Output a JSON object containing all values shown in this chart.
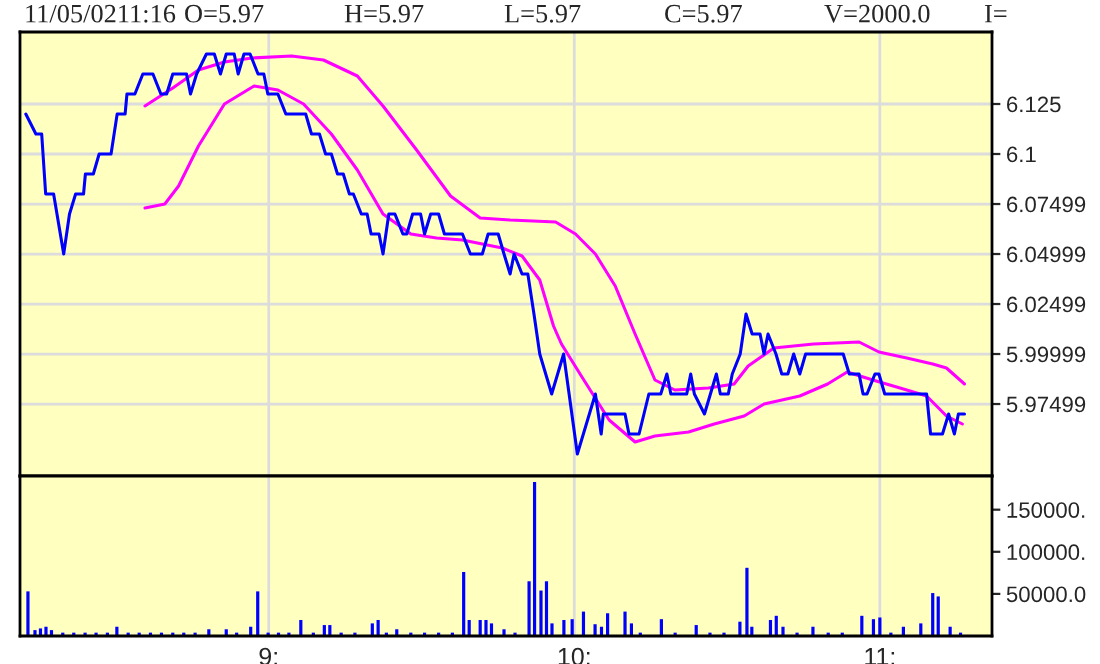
{
  "chart_data": [
    {
      "type": "line",
      "annotations": [
        "11/05/0211:16",
        "O=5.97",
        "H=5.97",
        "L=5.97",
        "C=5.97",
        "V=2000.0",
        "I="
      ],
      "xlim": [
        8.186,
        11.367
      ],
      "xticks": [
        {
          "value": 9,
          "label": null
        },
        {
          "value": 10,
          "label": null
        },
        {
          "value": 11,
          "label": null
        }
      ],
      "ylim": [
        5.939,
        6.161
      ],
      "yticks": [
        6.125,
        6.1,
        6.07499,
        6.04999,
        6.02499,
        5.99999,
        5.97499
      ],
      "tick_labels": "y",
      "grid": true,
      "series": [
        {
          "color": "#ff00ff",
          "x": [
            8.595,
            8.686,
            8.77,
            8.855,
            8.945,
            9.075,
            9.179,
            9.29,
            9.374,
            9.484,
            9.595,
            9.692,
            9.79,
            9.939,
            10.004,
            10.069,
            10.134,
            10.199,
            10.264,
            10.329,
            10.439,
            10.523,
            10.569,
            10.653,
            10.783,
            10.932,
            10.997,
            11.088,
            11.173,
            11.218,
            11.277
          ],
          "values": [
            6.124,
            6.133,
            6.142,
            6.146,
            6.148,
            6.149,
            6.147,
            6.139,
            6.124,
            6.102,
            6.079,
            6.068,
            6.067,
            6.066,
            6.06,
            6.05,
            6.034,
            6.01,
            5.987,
            5.982,
            5.983,
            5.985,
            5.994,
            6.003,
            6.005,
            6.006,
            6.001,
            5.998,
            5.995,
            5.993,
            5.985
          ]
        },
        {
          "color": "#ff00ff",
          "x": [
            8.595,
            8.66,
            8.705,
            8.77,
            8.855,
            8.952,
            9.03,
            9.114,
            9.205,
            9.29,
            9.374,
            9.465,
            9.549,
            9.634,
            9.764,
            9.829,
            9.887,
            9.932,
            9.958,
            10.023,
            10.114,
            10.199,
            10.264,
            10.374,
            10.458,
            10.556,
            10.621,
            10.738,
            10.829,
            10.893,
            10.977,
            11.088,
            11.153,
            11.218,
            11.27
          ],
          "values": [
            6.073,
            6.075,
            6.084,
            6.104,
            6.125,
            6.134,
            6.132,
            6.125,
            6.11,
            6.092,
            6.07,
            6.06,
            6.058,
            6.057,
            6.053,
            6.049,
            6.037,
            6.014,
            6.005,
            5.989,
            5.967,
            5.956,
            5.959,
            5.961,
            5.965,
            5.969,
            5.975,
            5.979,
            5.985,
            5.991,
            5.987,
            5.982,
            5.979,
            5.969,
            5.965
          ]
        },
        {
          "color": "#0000ff",
          "x": [
            8.205,
            8.238,
            8.257,
            8.27,
            8.296,
            8.329,
            8.348,
            8.368,
            8.394,
            8.4,
            8.426,
            8.445,
            8.484,
            8.504,
            8.53,
            8.536,
            8.562,
            8.588,
            8.621,
            8.647,
            8.666,
            8.686,
            8.731,
            8.744,
            8.764,
            8.796,
            8.822,
            8.842,
            8.861,
            8.887,
            8.9,
            8.919,
            8.939,
            8.965,
            8.984,
            8.997,
            9.03,
            9.056,
            9.121,
            9.14,
            9.166,
            9.186,
            9.205,
            9.225,
            9.244,
            9.264,
            9.277,
            9.303,
            9.322,
            9.335,
            9.361,
            9.374,
            9.393,
            9.413,
            9.439,
            9.452,
            9.471,
            9.497,
            9.51,
            9.53,
            9.556,
            9.575,
            9.634,
            9.66,
            9.699,
            9.718,
            9.751,
            9.77,
            9.79,
            9.803,
            9.829,
            9.848,
            9.868,
            9.887,
            9.926,
            9.965,
            10.01,
            10.069,
            10.088,
            10.095,
            10.166,
            10.179,
            10.212,
            10.244,
            10.283,
            10.303,
            10.316,
            10.368,
            10.381,
            10.393,
            10.426,
            10.465,
            10.478,
            10.504,
            10.517,
            10.543,
            10.562,
            10.582,
            10.608,
            10.621,
            10.634,
            10.66,
            10.679,
            10.699,
            10.718,
            10.738,
            10.757,
            10.88,
            10.9,
            10.932,
            10.945,
            10.958,
            10.984,
            10.997,
            11.016,
            11.153,
            11.166,
            11.205,
            11.225,
            11.244,
            11.257,
            11.277
          ],
          "values": [
            6.12,
            6.11,
            6.11,
            6.08,
            6.08,
            6.05,
            6.07,
            6.08,
            6.08,
            6.09,
            6.09,
            6.1,
            6.1,
            6.12,
            6.12,
            6.13,
            6.13,
            6.14,
            6.14,
            6.13,
            6.13,
            6.14,
            6.14,
            6.13,
            6.14,
            6.15,
            6.15,
            6.14,
            6.15,
            6.15,
            6.14,
            6.15,
            6.15,
            6.14,
            6.14,
            6.13,
            6.13,
            6.12,
            6.12,
            6.11,
            6.11,
            6.1,
            6.1,
            6.09,
            6.09,
            6.08,
            6.08,
            6.07,
            6.07,
            6.06,
            6.06,
            6.05,
            6.07,
            6.07,
            6.06,
            6.06,
            6.07,
            6.07,
            6.06,
            6.07,
            6.07,
            6.06,
            6.06,
            6.05,
            6.05,
            6.06,
            6.06,
            6.05,
            6.04,
            6.05,
            6.04,
            6.04,
            6.02,
            6.0,
            5.98,
            6.0,
            5.95,
            5.98,
            5.96,
            5.97,
            5.97,
            5.96,
            5.96,
            5.98,
            5.98,
            5.99,
            5.98,
            5.98,
            5.99,
            5.98,
            5.97,
            5.99,
            5.98,
            5.98,
            5.99,
            6.0,
            6.02,
            6.01,
            6.01,
            6.0,
            6.01,
            6.0,
            5.99,
            5.99,
            6.0,
            5.99,
            6.0,
            6.0,
            5.99,
            5.99,
            5.98,
            5.98,
            5.99,
            5.99,
            5.98,
            5.98,
            5.96,
            5.96,
            5.97,
            5.96,
            5.97,
            5.97
          ]
        }
      ]
    },
    {
      "type": "bar",
      "xlim": [
        8.186,
        11.367
      ],
      "xticks": [
        {
          "value": 9,
          "label": "9:"
        },
        {
          "value": 10,
          "label": "10:"
        },
        {
          "value": 11,
          "label": "11:"
        }
      ],
      "ylim": [
        0,
        190000
      ],
      "yticks": [
        {
          "value": 150000,
          "label": "150000."
        },
        {
          "value": 100000,
          "label": "100000."
        },
        {
          "value": 50000,
          "label": "50000.0"
        }
      ],
      "grid": "x",
      "series": [
        {
          "color": "#0000ff",
          "x": [
            8.212,
            8.235,
            8.253,
            8.271,
            8.289,
            8.326,
            8.362,
            8.399,
            8.435,
            8.472,
            8.503,
            8.54,
            8.576,
            8.613,
            8.649,
            8.686,
            8.722,
            8.759,
            8.804,
            8.861,
            8.895,
            8.941,
            8.964,
            8.998,
            9.032,
            9.066,
            9.105,
            9.146,
            9.182,
            9.2,
            9.237,
            9.282,
            9.339,
            9.358,
            9.385,
            9.419,
            9.465,
            9.51,
            9.556,
            9.601,
            9.638,
            9.656,
            9.692,
            9.711,
            9.729,
            9.77,
            9.806,
            9.852,
            9.87,
            9.891,
            9.909,
            9.927,
            9.966,
            9.993,
            10.03,
            10.068,
            10.089,
            10.109,
            10.166,
            10.187,
            10.216,
            10.285,
            10.33,
            10.399,
            10.444,
            10.49,
            10.542,
            10.565,
            10.581,
            10.642,
            10.661,
            10.683,
            10.729,
            10.781,
            10.831,
            10.877,
            10.941,
            10.979,
            11.0,
            11.036,
            11.077,
            11.134,
            11.173,
            11.191,
            11.23,
            11.264
          ],
          "values": [
            52000,
            6000,
            8000,
            10000,
            6000,
            3000,
            3000,
            3000,
            3000,
            3000,
            10000,
            3000,
            3000,
            3000,
            3000,
            3000,
            3000,
            3000,
            7000,
            7000,
            3000,
            10000,
            52000,
            3000,
            3000,
            3000,
            18000,
            3000,
            12000,
            12000,
            3000,
            3000,
            14000,
            18000,
            3000,
            7000,
            3000,
            3000,
            3000,
            3000,
            75000,
            18000,
            18000,
            18000,
            14000,
            7000,
            3000,
            64000,
            182000,
            53000,
            64000,
            14000,
            18000,
            19000,
            28000,
            13000,
            10000,
            26000,
            28000,
            14000,
            3000,
            19000,
            3000,
            12000,
            3000,
            3000,
            16000,
            80000,
            10000,
            18000,
            23000,
            10000,
            3000,
            10000,
            3000,
            3000,
            23000,
            19000,
            21000,
            3000,
            10000,
            14000,
            50000,
            46000,
            10000,
            3000
          ]
        }
      ]
    }
  ]
}
